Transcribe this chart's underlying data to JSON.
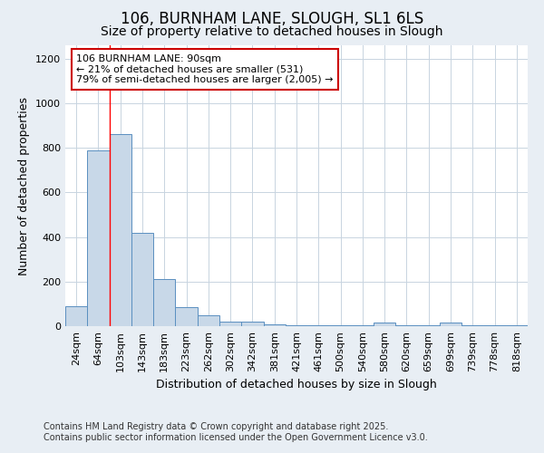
{
  "title": "106, BURNHAM LANE, SLOUGH, SL1 6LS",
  "subtitle": "Size of property relative to detached houses in Slough",
  "xlabel": "Distribution of detached houses by size in Slough",
  "ylabel": "Number of detached properties",
  "categories": [
    "24sqm",
    "64sqm",
    "103sqm",
    "143sqm",
    "183sqm",
    "223sqm",
    "262sqm",
    "302sqm",
    "342sqm",
    "381sqm",
    "421sqm",
    "461sqm",
    "500sqm",
    "540sqm",
    "580sqm",
    "620sqm",
    "659sqm",
    "699sqm",
    "739sqm",
    "778sqm",
    "818sqm"
  ],
  "values": [
    90,
    790,
    860,
    420,
    210,
    85,
    50,
    20,
    20,
    10,
    5,
    5,
    5,
    5,
    15,
    5,
    5,
    15,
    5,
    5,
    5
  ],
  "bar_color": "#c8d8e8",
  "bar_edge_color": "#5a8fc0",
  "red_line_x": 1.5,
  "annotation_text": "106 BURNHAM LANE: 90sqm\n← 21% of detached houses are smaller (531)\n79% of semi-detached houses are larger (2,005) →",
  "annotation_box_color": "#ffffff",
  "annotation_box_edge": "#cc0000",
  "ylim": [
    0,
    1260
  ],
  "yticks": [
    0,
    200,
    400,
    600,
    800,
    1000,
    1200
  ],
  "figure_background_color": "#e8eef4",
  "plot_background_color": "#ffffff",
  "grid_color": "#c8d4e0",
  "footer_line1": "Contains HM Land Registry data © Crown copyright and database right 2025.",
  "footer_line2": "Contains public sector information licensed under the Open Government Licence v3.0.",
  "title_fontsize": 12,
  "subtitle_fontsize": 10,
  "xlabel_fontsize": 9,
  "ylabel_fontsize": 9,
  "tick_fontsize": 8,
  "annotation_fontsize": 8,
  "footer_fontsize": 7
}
